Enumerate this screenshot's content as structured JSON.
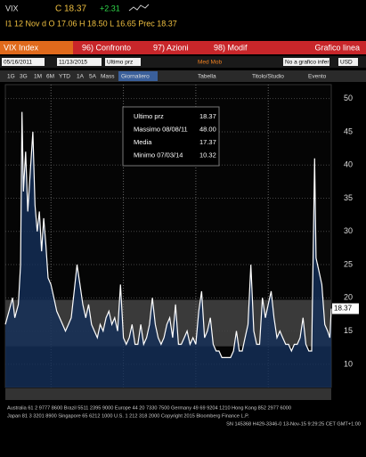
{
  "header": {
    "ticker": "VIX",
    "price": "C 18.37",
    "change": "+2.31",
    "line2": "I1 12 Nov d O 17.06 H 18.50 L 16.65 Prec 18.37"
  },
  "menu": [
    "VIX Index",
    "96) Confronto",
    "97) Azioni",
    "98) Modif",
    "Grafico linea"
  ],
  "toolbar1": [
    "05/16/2011",
    "11/13/2015",
    "Ultimo prz",
    "Med Mob",
    "No a grafico infer",
    "USD"
  ],
  "toolbar2": [
    "1G",
    "3G",
    "1M",
    "6M",
    "YTD",
    "1A",
    "5A",
    "Mass",
    "Giornaliero",
    "Tabella",
    "Titolo/Studio",
    "Evento"
  ],
  "legend": [
    [
      "Ultimo prz",
      "18.37"
    ],
    [
      "Massimo 08/08/11",
      "48.00"
    ],
    [
      "Media",
      "17.37"
    ],
    [
      "Minimo 07/03/14",
      "10.32"
    ]
  ],
  "footer": [
    "Australia 61 2 9777 8600 Brazil 5511 2395 9000 Europe 44 20 7330 7500 Germany 49 69 9204 1210 Hong Kong 852 2977 6000",
    "Japan 81 3 3201 8900 Singapore 65 6212 1000 U.S. 1 212 318 2000 Copyright 2015 Bloomberg Finance L.P.",
    "SN 145368 H429-3346-0 13-Nov-15 9:29:25 CET GMT+1:00"
  ],
  "chart_data": {
    "type": "line",
    "color": "#ffffff",
    "fill": "#14305a",
    "band": [
      12.7,
      19.7
    ],
    "xlim": [
      2011.37,
      2015.87
    ],
    "xticks": [
      2011,
      2012,
      2013,
      2014,
      2015
    ],
    "ylim": [
      6.5,
      52.1
    ],
    "yticks": [
      10,
      15,
      20,
      25,
      30,
      35,
      40,
      45,
      50
    ],
    "x": [
      2011.37,
      2011.42,
      2011.47,
      2011.5,
      2011.55,
      2011.58,
      2011.6,
      2011.62,
      2011.65,
      2011.68,
      2011.72,
      2011.75,
      2011.78,
      2011.81,
      2011.84,
      2011.87,
      2011.9,
      2011.93,
      2011.96,
      2012.0,
      2012.04,
      2012.08,
      2012.12,
      2012.16,
      2012.2,
      2012.24,
      2012.28,
      2012.32,
      2012.36,
      2012.4,
      2012.44,
      2012.48,
      2012.52,
      2012.56,
      2012.6,
      2012.64,
      2012.68,
      2012.72,
      2012.76,
      2012.8,
      2012.84,
      2012.88,
      2012.92,
      2012.96,
      2013.0,
      2013.04,
      2013.08,
      2013.12,
      2013.16,
      2013.2,
      2013.24,
      2013.28,
      2013.32,
      2013.36,
      2013.4,
      2013.44,
      2013.48,
      2013.52,
      2013.56,
      2013.6,
      2013.64,
      2013.68,
      2013.72,
      2013.76,
      2013.8,
      2013.84,
      2013.88,
      2013.92,
      2013.96,
      2014.0,
      2014.04,
      2014.08,
      2014.12,
      2014.16,
      2014.2,
      2014.24,
      2014.28,
      2014.32,
      2014.36,
      2014.4,
      2014.44,
      2014.48,
      2014.52,
      2014.56,
      2014.6,
      2014.64,
      2014.68,
      2014.72,
      2014.76,
      2014.8,
      2014.84,
      2014.88,
      2014.92,
      2014.96,
      2015.0,
      2015.04,
      2015.08,
      2015.12,
      2015.16,
      2015.2,
      2015.24,
      2015.28,
      2015.32,
      2015.36,
      2015.4,
      2015.44,
      2015.48,
      2015.52,
      2015.56,
      2015.6,
      2015.64,
      2015.66,
      2015.7,
      2015.74,
      2015.78,
      2015.82,
      2015.85,
      2015.87
    ],
    "values": [
      16,
      18,
      20,
      17,
      19,
      25,
      48,
      36,
      42,
      33,
      40,
      45,
      34,
      30,
      33,
      27,
      32,
      28,
      23,
      22,
      20,
      18,
      17,
      16,
      15,
      16,
      17,
      21,
      25,
      22,
      19,
      17,
      19,
      16,
      15,
      14,
      16,
      15,
      17,
      18,
      16,
      17,
      15,
      22,
      14,
      13,
      14,
      16,
      13,
      13,
      16,
      13,
      14,
      16,
      20,
      16,
      14,
      13,
      14,
      16,
      17,
      14,
      19,
      13,
      13,
      14,
      15,
      13,
      14,
      13,
      18,
      21,
      14,
      15,
      17,
      13,
      12,
      12,
      11,
      11,
      11,
      11,
      12,
      15,
      12,
      12,
      14,
      16,
      25,
      15,
      13,
      13,
      20,
      17,
      19,
      21,
      17,
      14,
      15,
      14,
      13,
      13,
      12,
      13,
      13,
      14,
      17,
      13,
      12,
      12,
      41,
      26,
      24,
      22,
      16,
      15,
      14,
      18.37
    ]
  }
}
